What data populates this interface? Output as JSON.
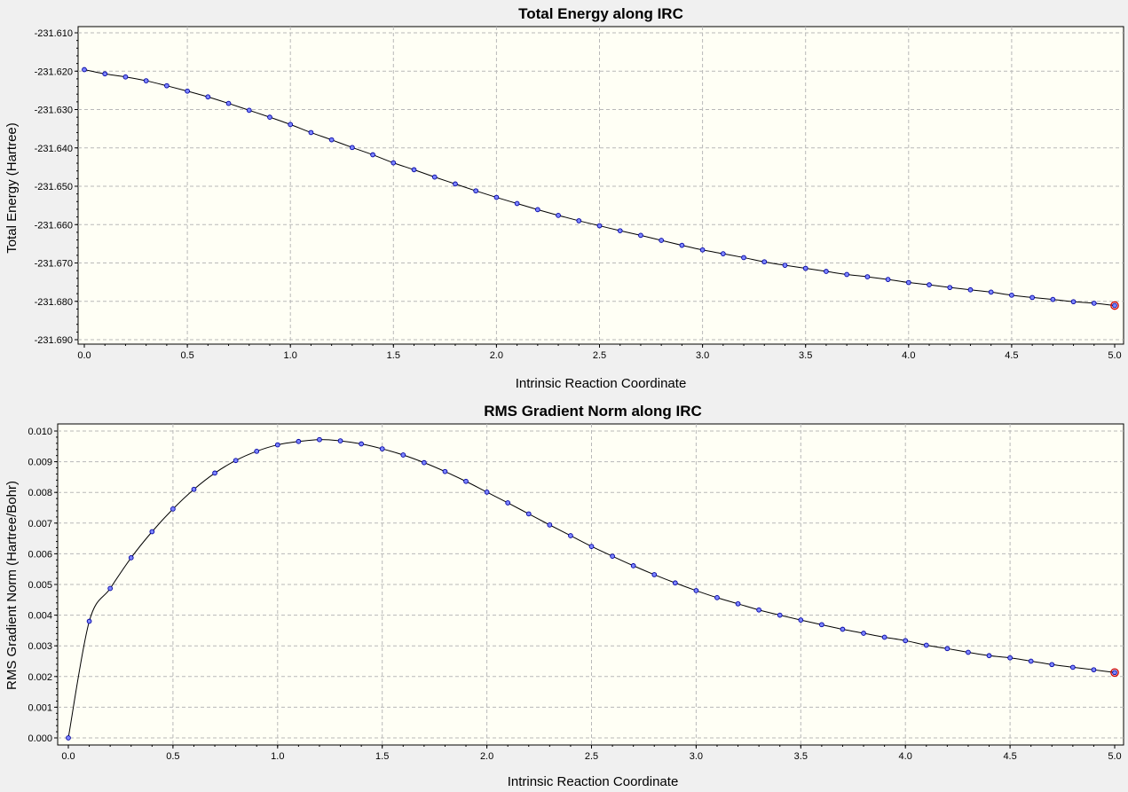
{
  "colors": {
    "background": "#f0f0f0",
    "plot_background": "#fffff5",
    "grid": "#b8b8b8",
    "line": "#000000",
    "point_fill": "#7d86ff",
    "point_stroke": "#0000a0",
    "highlight": "#d00000"
  },
  "chart_data": [
    {
      "type": "line",
      "title": "Total Energy along IRC",
      "xlabel": "Intrinsic Reaction Coordinate",
      "ylabel": "Total Energy (Hartree)",
      "xlim": [
        0.0,
        5.0
      ],
      "ylim": [
        -231.69,
        -231.61
      ],
      "x_ticks": [
        "0.0",
        "0.5",
        "1.0",
        "1.5",
        "2.0",
        "2.5",
        "3.0",
        "3.5",
        "4.0",
        "4.5",
        "5.0"
      ],
      "y_ticks": [
        "-231.610",
        "-231.620",
        "-231.630",
        "-231.640",
        "-231.650",
        "-231.660",
        "-231.670",
        "-231.680",
        "-231.690"
      ],
      "grid": true,
      "legend": "none",
      "highlighted_point": "last",
      "series": [
        {
          "x": [
            0.0,
            0.1,
            0.2,
            0.3,
            0.4,
            0.5,
            0.6,
            0.7,
            0.8,
            0.9,
            1.0,
            1.1,
            1.2,
            1.3,
            1.4,
            1.5,
            1.6,
            1.7,
            1.8,
            1.9,
            2.0,
            2.1,
            2.2,
            2.3,
            2.4,
            2.5,
            2.6,
            2.7,
            2.8,
            2.9,
            3.0,
            3.1,
            3.2,
            3.3,
            3.4,
            3.5,
            3.6,
            3.7,
            3.8,
            3.9,
            4.0,
            4.1,
            4.2,
            4.3,
            4.4,
            4.5,
            4.6,
            4.7,
            4.8,
            4.9,
            5.0
          ],
          "y": [
            -231.6196,
            -231.6207,
            -231.6215,
            -231.6225,
            -231.6238,
            -231.6252,
            -231.6267,
            -231.6284,
            -231.6302,
            -231.632,
            -231.6339,
            -231.636,
            -231.6379,
            -231.6399,
            -231.6418,
            -231.6439,
            -231.6457,
            -231.6476,
            -231.6494,
            -231.6512,
            -231.6529,
            -231.6545,
            -231.6561,
            -231.6576,
            -231.659,
            -231.6603,
            -231.6616,
            -231.6628,
            -231.6641,
            -231.6654,
            -231.6666,
            -231.6676,
            -231.6686,
            -231.6697,
            -231.6706,
            -231.6714,
            -231.6722,
            -231.673,
            -231.6736,
            -231.6743,
            -231.6751,
            -231.6757,
            -231.6764,
            -231.677,
            -231.6776,
            -231.6784,
            -231.679,
            -231.6795,
            -231.6801,
            -231.6805,
            -231.6811
          ]
        }
      ]
    },
    {
      "type": "line",
      "title": "RMS Gradient Norm along IRC",
      "xlabel": "Intrinsic Reaction Coordinate",
      "ylabel": "RMS Gradient Norm (Hartree/Bohr)",
      "xlim": [
        0.0,
        5.0
      ],
      "ylim": [
        0.0,
        0.01
      ],
      "x_ticks": [
        "0.0",
        "0.5",
        "1.0",
        "1.5",
        "2.0",
        "2.5",
        "3.0",
        "3.5",
        "4.0",
        "4.5",
        "5.0"
      ],
      "y_ticks": [
        "0.010",
        "0.009",
        "0.008",
        "0.007",
        "0.006",
        "0.005",
        "0.004",
        "0.003",
        "0.002",
        "0.001",
        "0.000"
      ],
      "grid": true,
      "legend": "none",
      "highlighted_point": "last",
      "series": [
        {
          "x": [
            0.0,
            0.1,
            0.2,
            0.3,
            0.4,
            0.5,
            0.6,
            0.7,
            0.8,
            0.9,
            1.0,
            1.1,
            1.2,
            1.3,
            1.4,
            1.5,
            1.6,
            1.7,
            1.8,
            1.9,
            2.0,
            2.1,
            2.2,
            2.3,
            2.4,
            2.5,
            2.6,
            2.7,
            2.8,
            2.9,
            3.0,
            3.1,
            3.2,
            3.3,
            3.4,
            3.5,
            3.6,
            3.7,
            3.8,
            3.9,
            4.0,
            4.1,
            4.2,
            4.3,
            4.4,
            4.5,
            4.6,
            4.7,
            4.8,
            4.9,
            5.0
          ],
          "y": [
            0.0,
            0.0038,
            0.00487,
            0.00587,
            0.00672,
            0.00746,
            0.0081,
            0.00863,
            0.00904,
            0.00934,
            0.00955,
            0.00966,
            0.00972,
            0.00968,
            0.00958,
            0.00942,
            0.00922,
            0.00897,
            0.00868,
            0.00836,
            0.00801,
            0.00766,
            0.0073,
            0.00694,
            0.00659,
            0.00624,
            0.00592,
            0.00561,
            0.00532,
            0.00505,
            0.0048,
            0.00457,
            0.00437,
            0.00417,
            0.004,
            0.00384,
            0.00369,
            0.00354,
            0.00341,
            0.00328,
            0.00317,
            0.00302,
            0.00291,
            0.00279,
            0.00268,
            0.00261,
            0.0025,
            0.00239,
            0.0023,
            0.00222,
            0.00213
          ]
        }
      ]
    }
  ]
}
